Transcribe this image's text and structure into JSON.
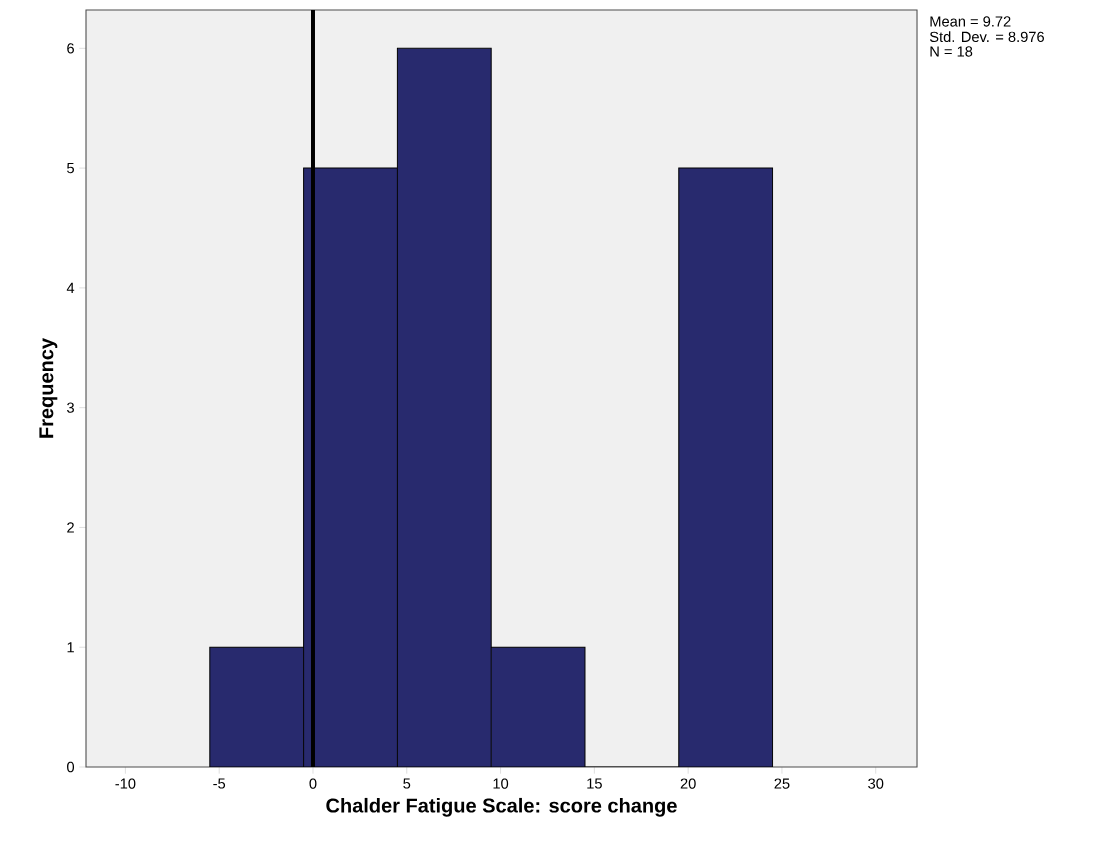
{
  "chart_data": {
    "type": "histogram",
    "xlabel": "Chalder Fatigue Scale: score change",
    "ylabel": "Frequency",
    "bins": [
      -5.5,
      -0.5,
      4.5,
      9.5,
      14.5,
      19.5,
      24.5
    ],
    "values": [
      1,
      5,
      6,
      1,
      0,
      5
    ],
    "color": "#282a6e",
    "xlim": [
      -12.1,
      32.2
    ],
    "ylim": [
      0,
      6.32
    ],
    "xticks": [
      -10,
      -5,
      0,
      5,
      10,
      15,
      20,
      25,
      30
    ],
    "yticks": [
      0,
      1,
      2,
      3,
      4,
      5,
      6
    ],
    "ref_lines": [
      {
        "axis": "x",
        "value": 0,
        "color": "#000000"
      }
    ],
    "annotations": [
      "Mean = 9.72",
      "Std. Dev. = 8.976",
      "N = 18"
    ]
  }
}
